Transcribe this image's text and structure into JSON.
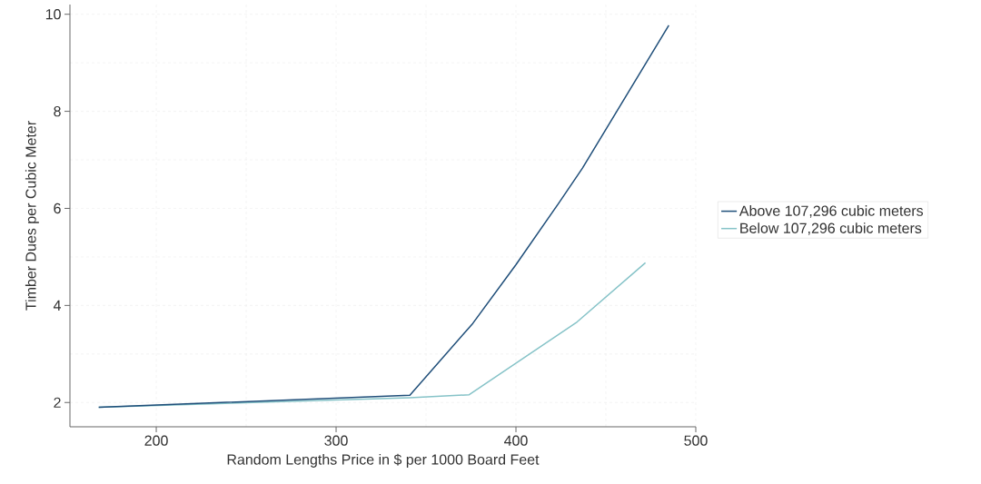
{
  "chart_data": {
    "type": "line",
    "xlabel": "Random Lengths Price in $ per 1000 Board Feet",
    "ylabel": "Timber Dues per Cubic Meter",
    "series": [
      {
        "name": "Above 107,296 cubic meters",
        "color": "#1f4e79",
        "x": [
          168,
          341,
          376,
          400,
          424,
          437,
          485
        ],
        "values": [
          1.9,
          2.15,
          3.63,
          4.84,
          6.12,
          6.83,
          9.77
        ]
      },
      {
        "name": "Below 107,296 cubic meters",
        "color": "#86c3c8",
        "x": [
          168,
          341,
          374,
          434,
          472
        ],
        "values": [
          1.9,
          2.1,
          2.16,
          3.66,
          4.88
        ]
      }
    ],
    "xlim": [
      152,
      500
    ],
    "ylim": [
      1.5,
      10.2
    ],
    "xticks": [
      200,
      300,
      400,
      500
    ],
    "yticks": [
      2,
      4,
      6,
      8,
      10
    ],
    "grid": true,
    "legend": "right",
    "line_style": "solid",
    "marker": "none"
  }
}
